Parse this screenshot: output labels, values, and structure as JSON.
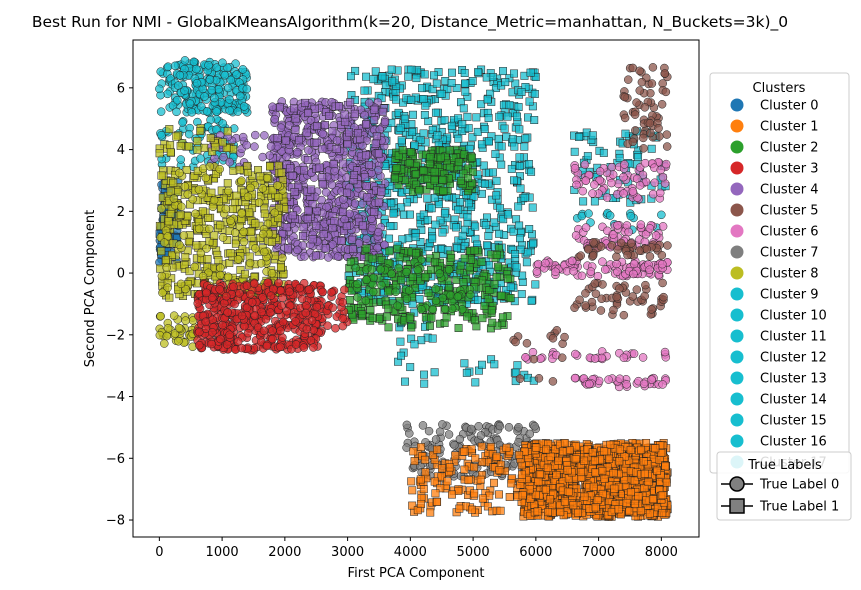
{
  "chart_data": {
    "type": "scatter",
    "title": "Best Run for NMI - GlobalKMeansAlgorithm(k=20, Distance_Metric=manhattan, N_Buckets=3k)_0",
    "xlabel": "First PCA Component",
    "ylabel": "Second PCA Component",
    "xlim": [
      -420,
      8600
    ],
    "ylim": [
      -8.55,
      7.55
    ],
    "xticks": [
      0,
      1000,
      2000,
      3000,
      4000,
      5000,
      6000,
      7000,
      8000
    ],
    "yticks": [
      -8,
      -6,
      -4,
      -2,
      0,
      2,
      4,
      6
    ],
    "grid": false,
    "legend_clusters": {
      "title": "Clusters",
      "placement": "right",
      "entries": [
        {
          "name": "Cluster 0",
          "color": "#1f77b4"
        },
        {
          "name": "Cluster 1",
          "color": "#ff7f0e"
        },
        {
          "name": "Cluster 2",
          "color": "#2ca02c"
        },
        {
          "name": "Cluster 3",
          "color": "#d62728"
        },
        {
          "name": "Cluster 4",
          "color": "#9467bd"
        },
        {
          "name": "Cluster 5",
          "color": "#8c564b"
        },
        {
          "name": "Cluster 6",
          "color": "#e377c2"
        },
        {
          "name": "Cluster 7",
          "color": "#7f7f7f"
        },
        {
          "name": "Cluster 8",
          "color": "#bcbd22"
        },
        {
          "name": "Cluster 9",
          "color": "#17becf"
        },
        {
          "name": "Cluster 10",
          "color": "#17becf"
        },
        {
          "name": "Cluster 11",
          "color": "#17becf"
        },
        {
          "name": "Cluster 12",
          "color": "#17becf"
        },
        {
          "name": "Cluster 13",
          "color": "#17becf"
        },
        {
          "name": "Cluster 14",
          "color": "#17becf"
        },
        {
          "name": "Cluster 15",
          "color": "#17becf"
        },
        {
          "name": "Cluster 16",
          "color": "#17becf"
        },
        {
          "name": "Cluster 17",
          "color": "#17becf"
        }
      ]
    },
    "legend_labels": {
      "title": "True Labels",
      "placement": "lower right",
      "entries": [
        {
          "name": "True Label 0",
          "marker": "circle"
        },
        {
          "name": "True Label 1",
          "marker": "square"
        }
      ]
    },
    "series": [
      {
        "name": "Cluster 9",
        "color": "#17becf",
        "regions": [
          {
            "x": [
              0,
              1400
            ],
            "y": [
              5.2,
              6.9
            ],
            "marker": "circle",
            "n": 220
          },
          {
            "x": [
              0,
              1200
            ],
            "y": [
              3.4,
              5.0
            ],
            "marker": "circle",
            "n": 60
          },
          {
            "x": [
              3000,
              6000
            ],
            "y": [
              -1.0,
              6.6
            ],
            "marker": "square",
            "n": 750
          },
          {
            "x": [
              3800,
              4400
            ],
            "y": [
              -3.6,
              -1.2
            ],
            "marker": "square",
            "n": 20
          },
          {
            "x": [
              4800,
              6000
            ],
            "y": [
              -3.6,
              -2.5
            ],
            "marker": "square",
            "n": 15
          },
          {
            "x": [
              6600,
              8100
            ],
            "y": [
              2.2,
              4.6
            ],
            "marker": "square",
            "n": 70
          },
          {
            "x": [
              6600,
              8100
            ],
            "y": [
              1.4,
              2.0
            ],
            "marker": "circle",
            "n": 15
          }
        ]
      },
      {
        "name": "Cluster 4",
        "color": "#9467bd",
        "regions": [
          {
            "x": [
              1800,
              3600
            ],
            "y": [
              0.5,
              5.6
            ],
            "marker": "circle",
            "n": 650
          },
          {
            "x": [
              1800,
              3600
            ],
            "y": [
              0.5,
              5.6
            ],
            "marker": "square",
            "n": 120
          },
          {
            "x": [
              800,
              1800
            ],
            "y": [
              3.4,
              4.6
            ],
            "marker": "circle",
            "n": 30
          }
        ]
      },
      {
        "name": "Cluster 2",
        "color": "#2ca02c",
        "regions": [
          {
            "x": [
              3000,
              5600
            ],
            "y": [
              -1.8,
              0.8
            ],
            "marker": "square",
            "n": 260
          },
          {
            "x": [
              3700,
              5000
            ],
            "y": [
              2.6,
              4.0
            ],
            "marker": "square",
            "n": 160
          },
          {
            "x": [
              3000,
              5000
            ],
            "y": [
              -1.2,
              0.5
            ],
            "marker": "circle",
            "n": 60
          }
        ]
      },
      {
        "name": "Cluster 0",
        "color": "#1f77b4",
        "regions": [
          {
            "x": [
              0,
              300
            ],
            "y": [
              0.3,
              3.0
            ],
            "marker": "circle",
            "n": 60
          },
          {
            "x": [
              0,
              300
            ],
            "y": [
              0.3,
              3.0
            ],
            "marker": "square",
            "n": 30
          }
        ]
      },
      {
        "name": "Cluster 8",
        "color": "#bcbd22",
        "regions": [
          {
            "x": [
              0,
              2000
            ],
            "y": [
              -0.8,
              3.5
            ],
            "marker": "square",
            "n": 380
          },
          {
            "x": [
              0,
              2000
            ],
            "y": [
              -0.8,
              3.5
            ],
            "marker": "circle",
            "n": 100
          },
          {
            "x": [
              0,
              600
            ],
            "y": [
              -2.4,
              -1.3
            ],
            "marker": "circle",
            "n": 40
          },
          {
            "x": [
              0,
              1200
            ],
            "y": [
              3.8,
              4.7
            ],
            "marker": "square",
            "n": 30
          }
        ]
      },
      {
        "name": "Cluster 3",
        "color": "#d62728",
        "regions": [
          {
            "x": [
              600,
              2600
            ],
            "y": [
              -2.5,
              -0.3
            ],
            "marker": "circle",
            "n": 500
          },
          {
            "x": [
              2600,
              3000
            ],
            "y": [
              -1.8,
              -0.5
            ],
            "marker": "circle",
            "n": 25
          }
        ]
      },
      {
        "name": "Cluster 6",
        "color": "#e377c2",
        "regions": [
          {
            "x": [
              6000,
              8100
            ],
            "y": [
              -0.1,
              0.4
            ],
            "marker": "circle",
            "n": 90
          },
          {
            "x": [
              6600,
              8100
            ],
            "y": [
              0.8,
              1.6
            ],
            "marker": "circle",
            "n": 60
          },
          {
            "x": [
              6600,
              8100
            ],
            "y": [
              2.4,
              3.6
            ],
            "marker": "circle",
            "n": 70
          },
          {
            "x": [
              5800,
              8100
            ],
            "y": [
              -2.8,
              -2.5
            ],
            "marker": "circle",
            "n": 30
          },
          {
            "x": [
              6600,
              8100
            ],
            "y": [
              -3.7,
              -3.4
            ],
            "marker": "circle",
            "n": 40
          }
        ]
      },
      {
        "name": "Cluster 5",
        "color": "#8c564b",
        "regions": [
          {
            "x": [
              6600,
              8100
            ],
            "y": [
              -1.4,
              -0.3
            ],
            "marker": "circle",
            "n": 50
          },
          {
            "x": [
              6600,
              8100
            ],
            "y": [
              0.5,
              1.0
            ],
            "marker": "circle",
            "n": 40
          },
          {
            "x": [
              7400,
              8100
            ],
            "y": [
              4.0,
              6.7
            ],
            "marker": "circle",
            "n": 60
          },
          {
            "x": [
              5600,
              6600
            ],
            "y": [
              -3.6,
              -1.5
            ],
            "marker": "circle",
            "n": 15
          }
        ]
      },
      {
        "name": "Cluster 7",
        "color": "#7f7f7f",
        "regions": [
          {
            "x": [
              3900,
              6000
            ],
            "y": [
              -6.6,
              -4.9
            ],
            "marker": "circle",
            "n": 150
          }
        ]
      },
      {
        "name": "Cluster 1",
        "color": "#ff7f0e",
        "regions": [
          {
            "x": [
              5800,
              8100
            ],
            "y": [
              -7.9,
              -5.5
            ],
            "marker": "square",
            "n": 1300
          },
          {
            "x": [
              4000,
              5800
            ],
            "y": [
              -7.8,
              -5.6
            ],
            "marker": "square",
            "n": 140
          }
        ]
      }
    ]
  }
}
